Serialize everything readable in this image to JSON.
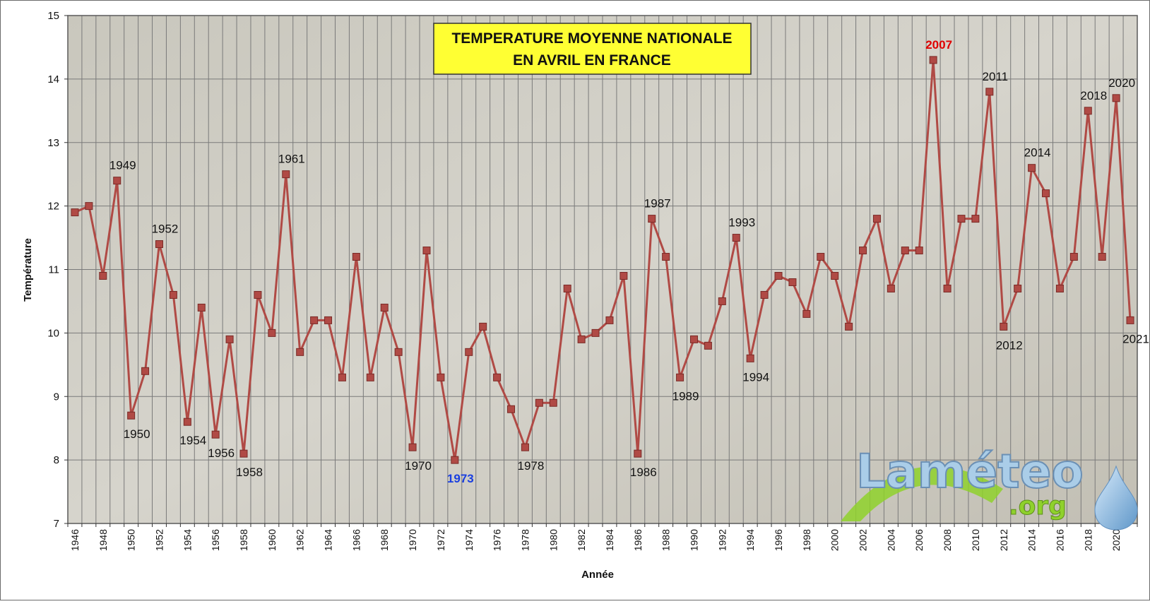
{
  "chart_data": {
    "type": "line",
    "title_lines": [
      "TEMPERATURE MOYENNE NATIONALE",
      "EN AVRIL EN FRANCE"
    ],
    "xlabel": "Année",
    "ylabel": "Température",
    "ylim": [
      7,
      15
    ],
    "yticks": [
      7,
      8,
      9,
      10,
      11,
      12,
      13,
      14,
      15
    ],
    "xlim": [
      1946,
      2021
    ],
    "xticks": [
      1946,
      1948,
      1950,
      1952,
      1954,
      1956,
      1958,
      1960,
      1962,
      1964,
      1966,
      1968,
      1970,
      1972,
      1974,
      1976,
      1978,
      1980,
      1982,
      1984,
      1986,
      1988,
      1990,
      1992,
      1994,
      1996,
      1998,
      2000,
      2002,
      2004,
      2006,
      2008,
      2010,
      2012,
      2014,
      2016,
      2018,
      2020
    ],
    "grid": true,
    "legend": "none",
    "series_color": "#b04a45",
    "x": [
      1946,
      1947,
      1948,
      1949,
      1950,
      1951,
      1952,
      1953,
      1954,
      1955,
      1956,
      1957,
      1958,
      1959,
      1960,
      1961,
      1962,
      1963,
      1964,
      1965,
      1966,
      1967,
      1968,
      1969,
      1970,
      1971,
      1972,
      1973,
      1974,
      1975,
      1976,
      1977,
      1978,
      1979,
      1980,
      1981,
      1982,
      1983,
      1984,
      1985,
      1986,
      1987,
      1988,
      1989,
      1990,
      1991,
      1992,
      1993,
      1994,
      1995,
      1996,
      1997,
      1998,
      1999,
      2000,
      2001,
      2002,
      2003,
      2004,
      2005,
      2006,
      2007,
      2008,
      2009,
      2010,
      2011,
      2012,
      2013,
      2014,
      2015,
      2016,
      2017,
      2018,
      2019,
      2020,
      2021
    ],
    "values": [
      11.9,
      12.0,
      10.9,
      12.4,
      8.7,
      9.4,
      11.4,
      10.6,
      8.6,
      10.4,
      8.4,
      9.9,
      8.1,
      10.6,
      10.0,
      12.5,
      9.7,
      10.2,
      10.2,
      9.3,
      11.2,
      9.3,
      10.4,
      9.7,
      8.2,
      11.3,
      9.3,
      8.0,
      9.7,
      10.1,
      9.3,
      8.8,
      8.2,
      8.9,
      8.9,
      10.7,
      9.9,
      10.0,
      10.2,
      10.9,
      8.1,
      11.8,
      11.2,
      9.3,
      9.9,
      9.8,
      10.5,
      11.5,
      9.6,
      10.6,
      10.9,
      10.8,
      10.3,
      11.2,
      10.9,
      10.1,
      11.3,
      11.8,
      10.7,
      11.3,
      11.3,
      14.3,
      10.7,
      11.8,
      11.8,
      13.8,
      10.1,
      10.7,
      12.6,
      12.2,
      10.7,
      11.2,
      13.5,
      11.2,
      13.7,
      10.2
    ],
    "annotations": [
      {
        "year": 1949,
        "label": "1949",
        "pos": "above",
        "color": "#111111"
      },
      {
        "year": 1950,
        "label": "1950",
        "pos": "below",
        "color": "#111111"
      },
      {
        "year": 1952,
        "label": "1952",
        "pos": "above",
        "color": "#111111"
      },
      {
        "year": 1954,
        "label": "1954",
        "pos": "below",
        "color": "#111111"
      },
      {
        "year": 1956,
        "label": "1956",
        "pos": "below",
        "color": "#111111"
      },
      {
        "year": 1958,
        "label": "1958",
        "pos": "below",
        "color": "#111111"
      },
      {
        "year": 1961,
        "label": "1961",
        "pos": "above",
        "color": "#111111"
      },
      {
        "year": 1970,
        "label": "1970",
        "pos": "below",
        "color": "#111111"
      },
      {
        "year": 1973,
        "label": "1973",
        "pos": "below",
        "color": "#1a3fe0"
      },
      {
        "year": 1978,
        "label": "1978",
        "pos": "below",
        "color": "#111111"
      },
      {
        "year": 1986,
        "label": "1986",
        "pos": "below",
        "color": "#111111"
      },
      {
        "year": 1987,
        "label": "1987",
        "pos": "above",
        "color": "#111111"
      },
      {
        "year": 1989,
        "label": "1989",
        "pos": "below",
        "color": "#111111"
      },
      {
        "year": 1993,
        "label": "1993",
        "pos": "above",
        "color": "#111111"
      },
      {
        "year": 1994,
        "label": "1994",
        "pos": "below",
        "color": "#111111"
      },
      {
        "year": 2007,
        "label": "2007",
        "pos": "above",
        "color": "#e00000"
      },
      {
        "year": 2011,
        "label": "2011",
        "pos": "above",
        "color": "#111111"
      },
      {
        "year": 2012,
        "label": "2012",
        "pos": "below",
        "color": "#111111"
      },
      {
        "year": 2014,
        "label": "2014",
        "pos": "above",
        "color": "#111111"
      },
      {
        "year": 2018,
        "label": "2018",
        "pos": "above",
        "color": "#111111"
      },
      {
        "year": 2020,
        "label": "2020",
        "pos": "above",
        "color": "#111111"
      },
      {
        "year": 2021,
        "label": "2021",
        "pos": "below",
        "color": "#111111"
      }
    ]
  },
  "logo": {
    "word": "Laméteo",
    "suffix": ".org",
    "icon": "water-drop-icon"
  },
  "colors": {
    "title_box": "#ffff33",
    "plot_bg": "#d8d6cf",
    "grid": "#7a7a7a",
    "logo_green": "#8fd12c",
    "logo_blue": "#9ec3e6"
  }
}
